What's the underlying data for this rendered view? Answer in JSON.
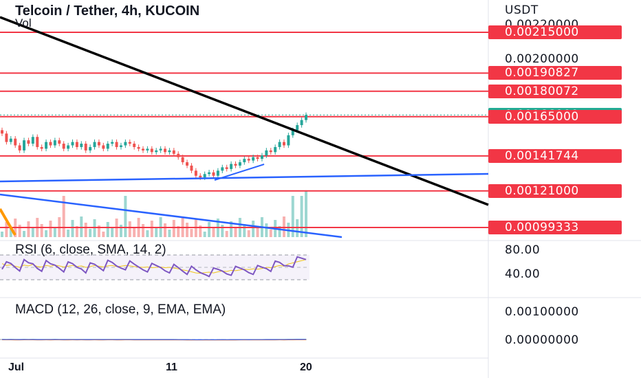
{
  "header": {
    "title": "Telcoin / Tether, 4h, KUCOIN",
    "volume_label": "Vol"
  },
  "price_axis": {
    "currency": "USDT",
    "labels": [
      "0.00220000",
      "0.00200000"
    ],
    "levels": [
      {
        "price": "0.00215000",
        "color": "#f23645"
      },
      {
        "price": "0.00190827",
        "color": "#f23645"
      },
      {
        "price": "0.00180072",
        "color": "#f23645"
      },
      {
        "price": "0.00166000",
        "color": "#22ab94"
      },
      {
        "price": "0.00165000",
        "color": "#f23645"
      },
      {
        "price": "0.00141744",
        "color": "#f23645"
      },
      {
        "price": "0.00121000",
        "color": "#f23645"
      },
      {
        "price": "0.00099333",
        "color": "#f23645"
      }
    ]
  },
  "rsi": {
    "label": "RSI (6, close, SMA, 14, 2)",
    "axis_labels": [
      "80.00",
      "40.00"
    ]
  },
  "macd": {
    "label": "MACD (12, 26, close, 9, EMA, EMA)",
    "axis_labels": [
      "0.00100000",
      "0.00000000"
    ]
  },
  "time_axis": {
    "labels": [
      "Jul",
      "11",
      "20"
    ]
  },
  "colors": {
    "up": "#26a69a",
    "down": "#ef5350",
    "level_line": "#f23645",
    "trendline_black": "#000000",
    "trendline_blue": "#2962ff",
    "rsi_line": "#7e57c2",
    "rsi_ma": "#f0c419",
    "orange_line": "#ff9800"
  },
  "chart_data": {
    "type": "candlestick",
    "title": "Telcoin / Tether, 4h, KUCOIN",
    "y_unit": "USDT",
    "ylim": [
      0.0009,
      0.0023
    ],
    "horizontal_levels": [
      0.00215,
      0.00190827,
      0.00180072,
      0.00165,
      0.00141744,
      0.00121,
      0.00099333
    ],
    "last_price": 0.00166,
    "x_ticks": [
      "Jul",
      "11",
      "20"
    ],
    "close_series": [
      0.00155,
      0.0015,
      0.00152,
      0.00148,
      0.00145,
      0.00151,
      0.00149,
      0.00153,
      0.00147,
      0.00146,
      0.0015,
      0.00148,
      0.00151,
      0.00149,
      0.00146,
      0.00148,
      0.0015,
      0.00147,
      0.00149,
      0.00145,
      0.00147,
      0.0015,
      0.00148,
      0.00146,
      0.00149,
      0.0015,
      0.00147,
      0.00148,
      0.0015,
      0.00149,
      0.00147,
      0.00146,
      0.00145,
      0.00146,
      0.00144,
      0.00145,
      0.00146,
      0.00144,
      0.00145,
      0.00143,
      0.00141,
      0.00138,
      0.00136,
      0.00133,
      0.0013,
      0.00129,
      0.00131,
      0.00132,
      0.0013,
      0.00133,
      0.00135,
      0.00134,
      0.00137,
      0.00136,
      0.00138,
      0.0014,
      0.00139,
      0.00141,
      0.0014,
      0.00142,
      0.00145,
      0.00144,
      0.00147,
      0.0015,
      0.00148,
      0.00154,
      0.00157,
      0.0016,
      0.00163,
      0.00166
    ],
    "rsi_range": [
      0,
      100
    ],
    "rsi_bands": [
      70,
      30
    ]
  }
}
